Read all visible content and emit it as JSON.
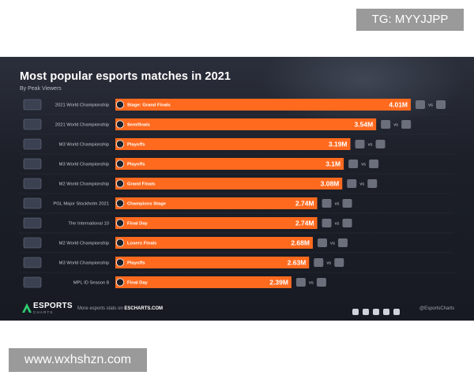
{
  "watermarks": {
    "top": "TG: MYYJJPP",
    "bottom": "www.wxhshzn.com"
  },
  "header": {
    "title": "Most popular esports matches in 2021",
    "subtitle": "By Peak Viewers"
  },
  "colors": {
    "bar": "#ff6a1f",
    "background": "#1c1f28",
    "text_light": "#ffffff",
    "text_muted": "#b9bdc6"
  },
  "chart_data": {
    "type": "bar",
    "orientation": "horizontal",
    "title": "Most popular esports matches in 2021",
    "subtitle": "By Peak Viewers",
    "xlabel": "",
    "ylabel": "",
    "xlim": [
      0,
      4.01
    ],
    "grid": false,
    "unit": "M",
    "categories": [
      "2021 World Championship",
      "2021 World Championship",
      "M3 World Championship",
      "M3 World Championship",
      "M2 World Championship",
      "PGL Major Stockholm 2021",
      "The International 10",
      "M2 World Championship",
      "M3 World Championship",
      "MPL ID Season 8"
    ],
    "stages": [
      "Stage: Grand Finals",
      "Semifinals",
      "Playoffs",
      "Playoffs",
      "Grand Finals",
      "Champions Stage",
      "Final Day",
      "Losers Finals",
      "Playoffs",
      "Final Day"
    ],
    "values": [
      4.01,
      3.54,
      3.19,
      3.1,
      3.08,
      2.74,
      2.74,
      2.68,
      2.63,
      2.39
    ],
    "value_labels": [
      "4.01M",
      "3.54M",
      "3.19M",
      "3.1M",
      "3.08M",
      "2.74M",
      "2.74M",
      "2.68M",
      "2.63M",
      "2.39M"
    ],
    "versus": "vs"
  },
  "footer": {
    "brand": "ESPORTS",
    "brand_sub": "CHARTS",
    "note_prefix": "More esports stats on",
    "note_site": "ESCHARTS.COM",
    "handle": "@EsportsCharts",
    "social_icons": [
      "twitter-icon",
      "facebook-icon",
      "instagram-icon",
      "youtube-icon",
      "linkedin-icon"
    ]
  }
}
